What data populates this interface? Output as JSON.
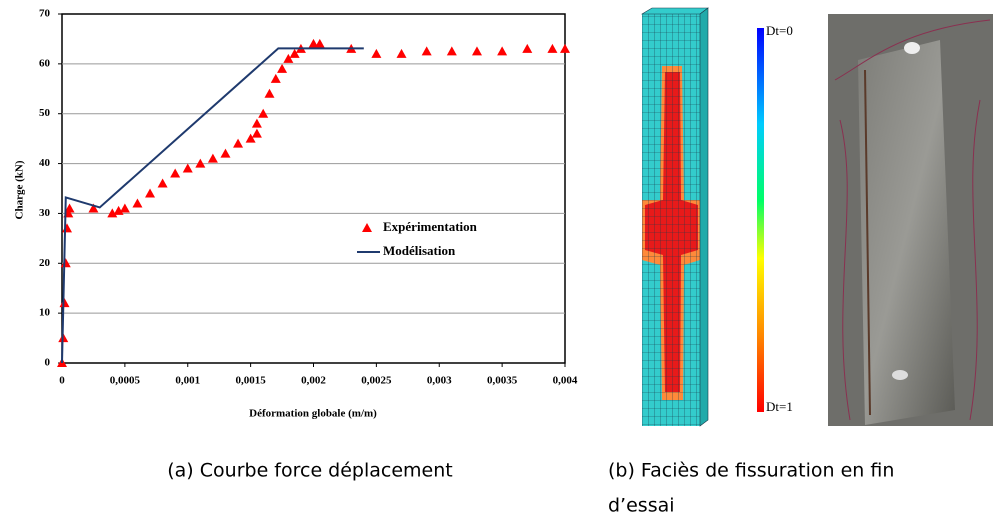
{
  "chart_data": {
    "type": "scatter",
    "ylabel": "Charge (kN)",
    "xlabel": "Déformation globale (m/m)",
    "xlim": [
      0,
      0.004
    ],
    "ylim": [
      0,
      70
    ],
    "xticks": [
      {
        "value": 0,
        "label": "0"
      },
      {
        "value": 0.0005,
        "label": "0,0005"
      },
      {
        "value": 0.001,
        "label": "0,001"
      },
      {
        "value": 0.0015,
        "label": "0,0015"
      },
      {
        "value": 0.002,
        "label": "0,002"
      },
      {
        "value": 0.0025,
        "label": "0,0025"
      },
      {
        "value": 0.003,
        "label": "0,003"
      },
      {
        "value": 0.0035,
        "label": "0,0035"
      },
      {
        "value": 0.004,
        "label": "0,004"
      }
    ],
    "yticks": [
      0,
      10,
      20,
      30,
      40,
      50,
      60,
      70
    ],
    "grid": "y",
    "legend": "center-right",
    "series": [
      {
        "name": "Expérimentation",
        "color": "#ff0000",
        "marker": "triangle",
        "x": [
          0,
          1e-05,
          2e-05,
          3e-05,
          4e-05,
          5e-05,
          6e-05,
          0.00025,
          0.0004,
          0.00045,
          0.0005,
          0.0006,
          0.0007,
          0.0008,
          0.0009,
          0.001,
          0.0011,
          0.0012,
          0.0013,
          0.0014,
          0.0015,
          0.00155,
          0.00155,
          0.0016,
          0.00165,
          0.0017,
          0.00175,
          0.0018,
          0.00185,
          0.0019,
          0.002,
          0.00205,
          0.0023,
          0.0025,
          0.0027,
          0.0029,
          0.0031,
          0.0033,
          0.0035,
          0.0037,
          0.0039,
          0.004
        ],
        "values": [
          0,
          5,
          12,
          20,
          27,
          30,
          31,
          31,
          30,
          30.5,
          31,
          32,
          34,
          36,
          38,
          39,
          40,
          41,
          42,
          44,
          45,
          46,
          48,
          50,
          54,
          57,
          59,
          61,
          62,
          63,
          64,
          64,
          63,
          62,
          62,
          62.5,
          62.5,
          62.5,
          62.5,
          63,
          63,
          63
        ]
      },
      {
        "name": "Modélisation",
        "color": "#1f3a6e",
        "marker": "line",
        "x": [
          0,
          3e-05,
          0.0003,
          0.00172,
          0.0024
        ],
        "values": [
          0,
          33.2,
          31.2,
          63.1,
          63.1
        ]
      }
    ]
  },
  "colorbar": {
    "top_label": "Dt=0",
    "bottom_label": "Dt=1"
  },
  "captions": {
    "a": "(a) Courbe force déplacement",
    "b_line1": "(b) Faciès de fissuration en fin",
    "b_line2": "d’essai"
  }
}
